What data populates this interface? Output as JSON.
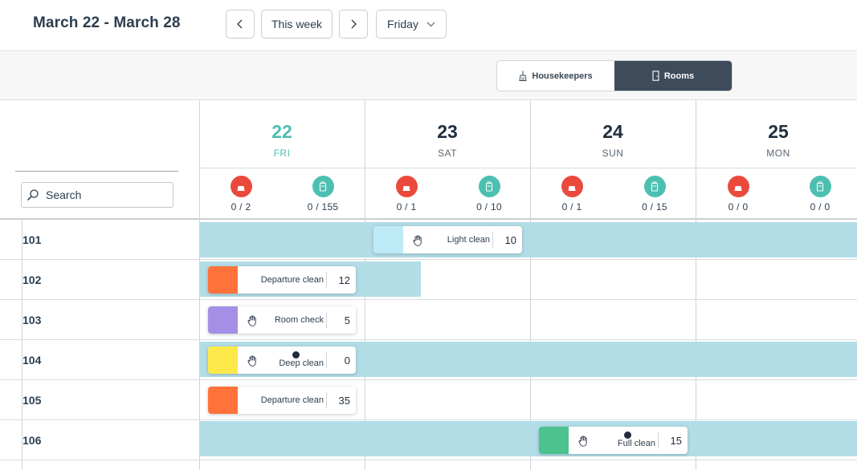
{
  "header": {
    "date_range": "March 22 - March 28",
    "this_week_label": "This week",
    "day_select": "Friday"
  },
  "view_toggle": {
    "housekeepers_label": "Housekeepers",
    "rooms_label": "Rooms",
    "active": "Rooms"
  },
  "search": {
    "placeholder": "Search"
  },
  "days": [
    {
      "num": "22",
      "name": "FRI",
      "today": true,
      "dirty": "0 / 2",
      "clean": "0 / 155"
    },
    {
      "num": "23",
      "name": "SAT",
      "today": false,
      "dirty": "0 / 1",
      "clean": "0 / 10"
    },
    {
      "num": "24",
      "name": "SUN",
      "today": false,
      "dirty": "0 / 1",
      "clean": "0 / 15"
    },
    {
      "num": "25",
      "name": "MON",
      "today": false,
      "dirty": "0 / 0",
      "clean": "0 / 0"
    }
  ],
  "rooms": [
    "101",
    "102",
    "103",
    "104",
    "105",
    "106"
  ],
  "tasks": [
    {
      "room": "101",
      "label": "Light clean",
      "count": "10",
      "color": "#bdeaf7",
      "hand": true,
      "dot": false
    },
    {
      "room": "102",
      "label": "Departure clean",
      "count": "12",
      "color": "#ff733a",
      "hand": false,
      "dot": false
    },
    {
      "room": "103",
      "label": "Room check",
      "count": "5",
      "color": "#a58fe6",
      "hand": true,
      "dot": false
    },
    {
      "room": "104",
      "label": "Deep clean",
      "count": "0",
      "color": "#fde84a",
      "hand": true,
      "dot": true
    },
    {
      "room": "105",
      "label": "Departure clean",
      "count": "35",
      "color": "#ff733a",
      "hand": false,
      "dot": false
    },
    {
      "room": "106",
      "label": "Full clean",
      "count": "15",
      "color": "#4cc28e",
      "hand": true,
      "dot": true
    }
  ],
  "colors": {
    "today": "#4dbfb1",
    "occupied": "#b2dde6",
    "dirty_icon": "#ea4a3c",
    "clean_icon": "#4dbfb1",
    "active_toggle": "#3d4b5b"
  },
  "icons": {
    "prev": "chevron-left-icon",
    "next": "chevron-right-icon",
    "dropdown": "chevron-down-icon",
    "search": "search-icon",
    "housekeeper": "broom-icon",
    "room": "door-icon",
    "hand": "hand-icon"
  }
}
